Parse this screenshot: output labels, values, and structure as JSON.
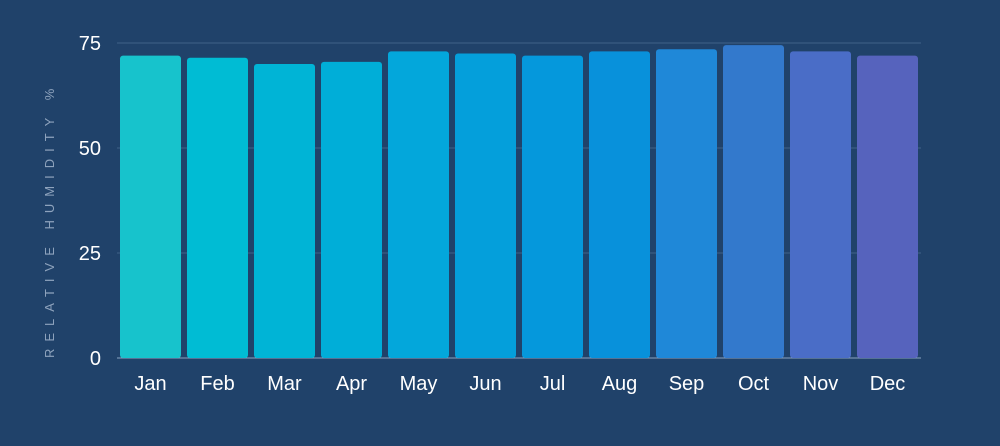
{
  "chart_data": {
    "type": "bar",
    "title": "",
    "xlabel": "",
    "ylabel": "RELATIVE HUMIDITY %",
    "categories": [
      "Jan",
      "Feb",
      "Mar",
      "Apr",
      "May",
      "Jun",
      "Jul",
      "Aug",
      "Sep",
      "Oct",
      "Nov",
      "Dec"
    ],
    "values": [
      72,
      71.5,
      70,
      70.5,
      73,
      72.5,
      72,
      73,
      73.5,
      74.5,
      73,
      72
    ],
    "ylim": [
      0,
      75
    ],
    "yticks": [
      "0",
      "25",
      "50",
      "75"
    ],
    "grid": true,
    "legend": "none",
    "bar_colors": [
      "#17c3cc",
      "#00bcd4",
      "#00b4d6",
      "#00aed8",
      "#03a7db",
      "#049fdb",
      "#0598dc",
      "#0891db",
      "#1f88d8",
      "#3379cc",
      "#4a6dc7",
      "#5663bd"
    ],
    "background": "#20426a"
  }
}
